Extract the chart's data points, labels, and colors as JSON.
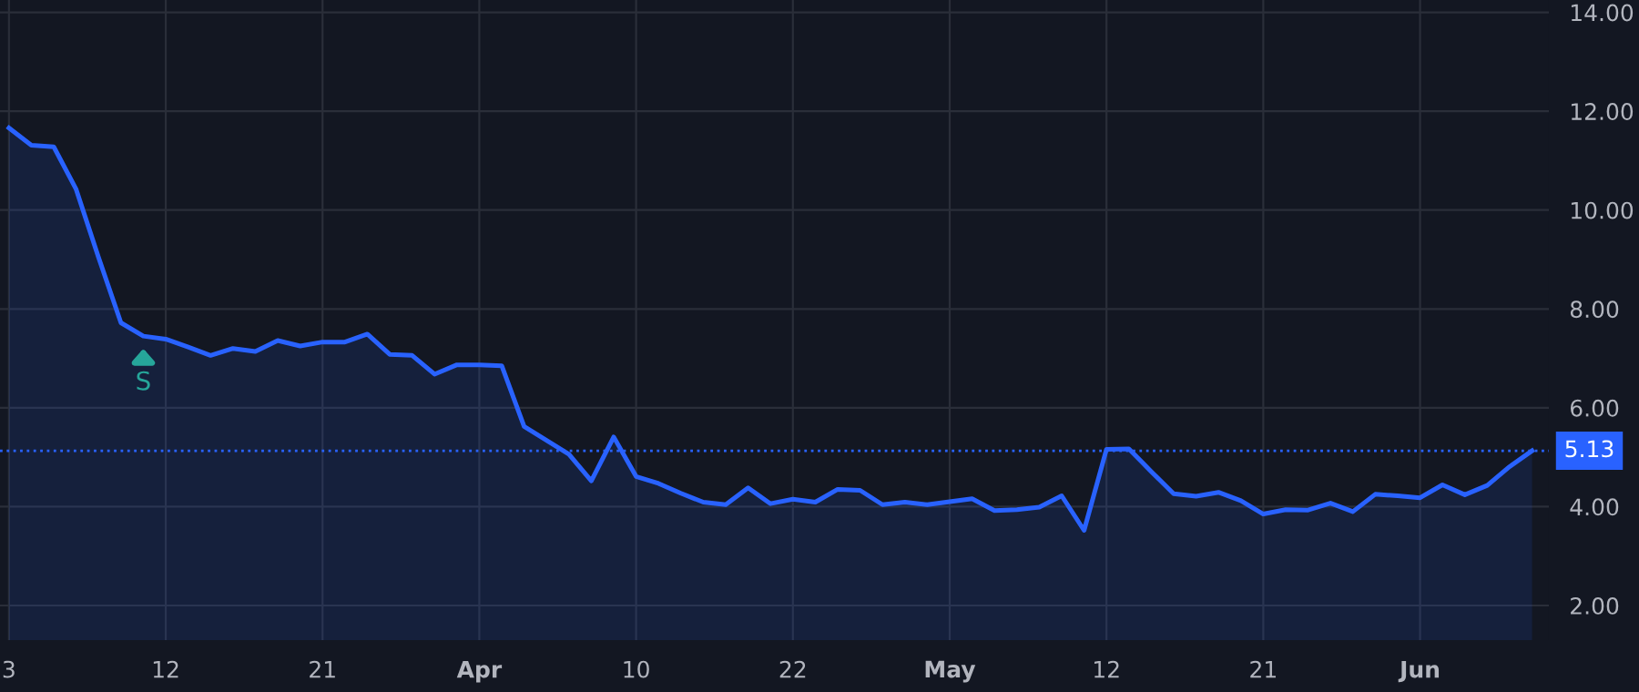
{
  "chart_data": {
    "type": "area",
    "categories": [
      "3",
      null,
      null,
      null,
      null,
      null,
      null,
      "12",
      null,
      null,
      null,
      null,
      null,
      null,
      "21",
      null,
      null,
      null,
      null,
      null,
      null,
      "Apr",
      null,
      null,
      null,
      null,
      null,
      null,
      "10",
      null,
      null,
      null,
      null,
      null,
      null,
      "22",
      null,
      null,
      null,
      null,
      null,
      null,
      "May",
      null,
      null,
      null,
      null,
      null,
      null,
      "12",
      null,
      null,
      null,
      null,
      null,
      null,
      "21",
      null,
      null,
      null,
      null,
      null,
      null,
      "Jun",
      null,
      null,
      null,
      null,
      null
    ],
    "series": [
      {
        "color": "#2962ff",
        "values": [
          11.66,
          11.31,
          11.28,
          10.42,
          9.04,
          7.72,
          7.45,
          7.39,
          7.23,
          7.06,
          7.2,
          7.14,
          7.36,
          7.25,
          7.33,
          7.33,
          7.49,
          7.08,
          7.06,
          6.68,
          6.87,
          6.87,
          6.85,
          5.62,
          5.34,
          5.06,
          4.52,
          5.41,
          4.61,
          4.47,
          4.27,
          4.09,
          4.04,
          4.38,
          4.06,
          4.15,
          4.09,
          4.35,
          4.33,
          4.04,
          4.09,
          4.04,
          4.1,
          4.16,
          3.92,
          3.94,
          3.99,
          4.22,
          3.52,
          5.16,
          5.17,
          4.71,
          4.26,
          4.21,
          4.29,
          4.12,
          3.85,
          3.94,
          3.93,
          4.07,
          3.9,
          4.25,
          4.22,
          4.18,
          4.44,
          4.24,
          4.43,
          4.81,
          5.13
        ]
      }
    ],
    "ylim": [
      1.3,
      14.25
    ],
    "yticks": [
      {
        "value": 2,
        "label": "2.00"
      },
      {
        "value": 4,
        "label": "4.00"
      },
      {
        "value": 6,
        "label": "6.00"
      },
      {
        "value": 8,
        "label": "8.00"
      },
      {
        "value": 10,
        "label": "10.00"
      },
      {
        "value": 12,
        "label": "12.00"
      },
      {
        "value": 14,
        "label": "14.00"
      }
    ],
    "ref_lines": [
      {
        "axis": "y",
        "value": 5.13,
        "label": "5.13",
        "color": "#2962ff",
        "line_style": "dotted"
      }
    ],
    "annotations": [
      {
        "text": "S",
        "y": 7.45
      }
    ],
    "grid": true,
    "marker": "none",
    "line_style": "solid"
  }
}
